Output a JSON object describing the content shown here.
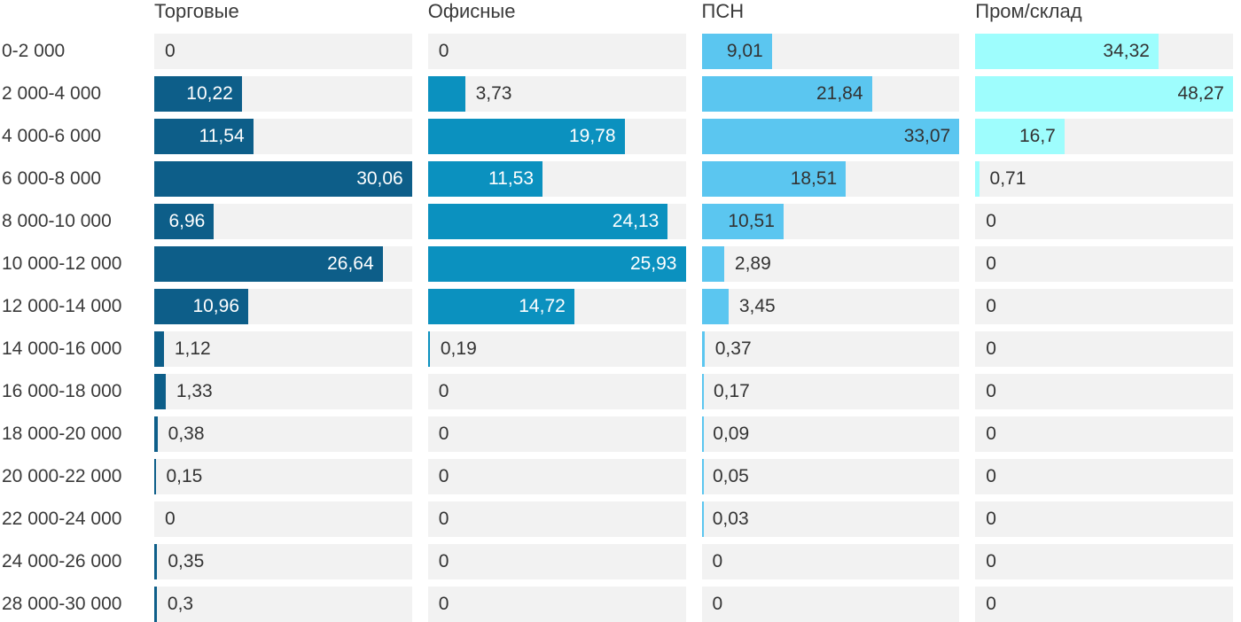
{
  "chart_data": {
    "type": "bar",
    "orientation": "horizontal",
    "title": "",
    "xlabel": "",
    "ylabel": "",
    "grid": false,
    "legend_position": "column-headers-top",
    "scaling": "each column scaled independently, column max = full track width",
    "decimal_separator": ",",
    "categories": [
      "0-2 000",
      "2 000-4 000",
      "4 000-6 000",
      "6 000-8 000",
      "8 000-10 000",
      "10 000-12 000",
      "12 000-14 000",
      "14 000-16 000",
      "16 000-18 000",
      "18 000-20 000",
      "20 000-22 000",
      "22 000-24 000",
      "24 000-26 000",
      "28 000-30 000"
    ],
    "series": [
      {
        "name": "Торговые",
        "color": "#0d5e89",
        "label_color_inside": "#ffffff",
        "values": [
          0,
          10.22,
          11.54,
          30.06,
          6.96,
          26.64,
          10.96,
          1.12,
          1.33,
          0.38,
          0.15,
          0,
          0.35,
          0.3
        ]
      },
      {
        "name": "Офисные",
        "color": "#0b91bf",
        "label_color_inside": "#ffffff",
        "values": [
          0,
          3.73,
          19.78,
          11.53,
          24.13,
          25.93,
          14.72,
          0.19,
          0,
          0,
          0,
          0,
          0,
          0
        ]
      },
      {
        "name": "ПСН",
        "color": "#5bc6f0",
        "label_color_inside": "#333333",
        "values": [
          9.01,
          21.84,
          33.07,
          18.51,
          10.51,
          2.89,
          3.45,
          0.37,
          0.17,
          0.09,
          0.05,
          0.03,
          0,
          0
        ]
      },
      {
        "name": "Пром/склад",
        "color": "#9efdfd",
        "label_color_inside": "#333333",
        "values": [
          34.32,
          48.27,
          16.7,
          0.71,
          0,
          0,
          0,
          0,
          0,
          0,
          0,
          0,
          0,
          0
        ]
      }
    ],
    "track_color": "#f2f2f2",
    "text_color": "#3a3a3a",
    "label_color_outside": "#333333"
  }
}
